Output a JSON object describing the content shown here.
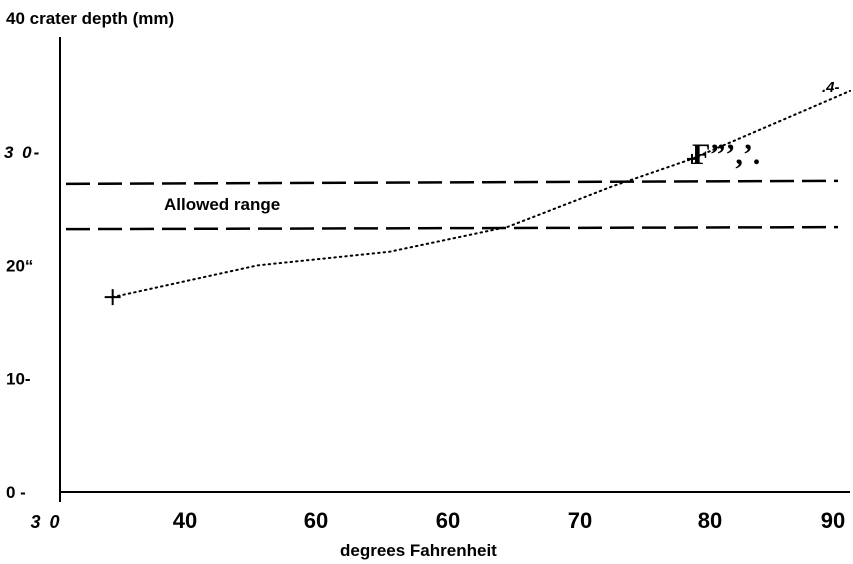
{
  "chart_data": {
    "type": "line",
    "title": "40  crater  depth  (mm)",
    "xlabel": "degrees  Fahrenheit",
    "ylabel": "crater depth (mm)",
    "x_ticks": [
      "3 0",
      "40",
      "60",
      "60",
      "70",
      "80",
      "90"
    ],
    "y_ticks": [
      "0 -",
      "10-",
      "20“",
      "3 0-"
    ],
    "y_tick_values": [
      0,
      10,
      20,
      30
    ],
    "ylim": [
      0,
      40
    ],
    "series": [
      {
        "style": "dotted",
        "marker": "+",
        "x": [
          34,
          45,
          55,
          64,
          72,
          78,
          90
        ],
        "y": [
          17.2,
          20.0,
          21.2,
          23.4,
          27.0,
          29.4,
          35.4
        ]
      }
    ],
    "allowed_range": {
      "label": "Allowed range",
      "lower": 23.2,
      "upper": 27.2,
      "style": "dashed"
    },
    "annotations": {
      "near_point": "F”’,’.",
      "line_end": ".4-"
    },
    "grid": false
  }
}
